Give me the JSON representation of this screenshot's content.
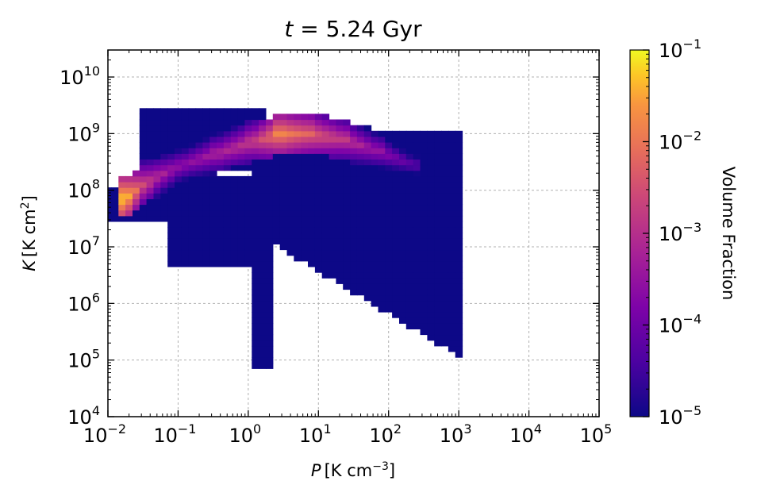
{
  "chart_data": {
    "type": "heatmap",
    "title_var": "t",
    "title_rest": " = 5.24 Gyr",
    "x_axis": {
      "label_var": "P",
      "label_unit": "[K cm",
      "label_sup": "−3",
      "label_close": "]",
      "scale": "log",
      "range": [
        0.01,
        100000
      ],
      "ticks": [
        {
          "base": "10",
          "exp": "−2",
          "value": 0.01
        },
        {
          "base": "10",
          "exp": "−1",
          "value": 0.1
        },
        {
          "base": "10",
          "exp": "0",
          "value": 1
        },
        {
          "base": "10",
          "exp": "1",
          "value": 10
        },
        {
          "base": "10",
          "exp": "2",
          "value": 100
        },
        {
          "base": "10",
          "exp": "3",
          "value": 1000
        },
        {
          "base": "10",
          "exp": "4",
          "value": 10000
        },
        {
          "base": "10",
          "exp": "5",
          "value": 100000
        }
      ]
    },
    "y_axis": {
      "label_var": "K",
      "label_unit": "[K cm",
      "label_sup": "2",
      "label_close": "]",
      "scale": "log",
      "range": [
        10000,
        30000000000
      ],
      "ticks": [
        {
          "base": "10",
          "exp": "4",
          "value": 10000
        },
        {
          "base": "10",
          "exp": "5",
          "value": 100000
        },
        {
          "base": "10",
          "exp": "6",
          "value": 1000000
        },
        {
          "base": "10",
          "exp": "7",
          "value": 10000000
        },
        {
          "base": "10",
          "exp": "8",
          "value": 100000000
        },
        {
          "base": "10",
          "exp": "9",
          "value": 1000000000
        },
        {
          "base": "10",
          "exp": "10",
          "value": 10000000000
        }
      ]
    },
    "grid": true,
    "colorbar": {
      "label": "Volume Fraction",
      "scale": "log",
      "colormap": "plasma",
      "range": [
        1e-05,
        0.1
      ],
      "ticks": [
        {
          "base": "10",
          "exp": "−1",
          "value": 0.1
        },
        {
          "base": "10",
          "exp": "−2",
          "value": 0.01
        },
        {
          "base": "10",
          "exp": "−3",
          "value": 0.001
        },
        {
          "base": "10",
          "exp": "−4",
          "value": 0.0001
        },
        {
          "base": "10",
          "exp": "−5",
          "value": 1e-05
        }
      ]
    },
    "bins": {
      "log_P_step": 0.1,
      "log_K_step": 0.1,
      "occupied_regions": [
        {
          "log_P": [
            -2.2,
            -1.2
          ],
          "log_K": [
            7.4,
            8.0
          ],
          "log_fraction": -3.5
        },
        {
          "log_P": [
            -1.2,
            0.3
          ],
          "log_K": [
            6.6,
            8.2
          ],
          "log_fraction": -5
        },
        {
          "log_P": [
            0.0,
            3.0
          ],
          "log_K": [
            4.8,
            9.0
          ],
          "log_fraction": -5
        },
        {
          "log_P": [
            -1.6,
            0.2
          ],
          "log_K": [
            8.3,
            9.4
          ],
          "log_fraction": -5
        }
      ],
      "peak_ridge": [
        {
          "log_P": -1.8,
          "log_K": 7.8,
          "log_fraction": -1.2
        },
        {
          "log_P": -1.5,
          "log_K": 8.1,
          "log_fraction": -2.8
        },
        {
          "log_P": -1.0,
          "log_K": 8.4,
          "log_fraction": -3.6
        },
        {
          "log_P": -0.5,
          "log_K": 8.6,
          "log_fraction": -3.2
        },
        {
          "log_P": 0.0,
          "log_K": 8.8,
          "log_fraction": -2.8
        },
        {
          "log_P": 0.4,
          "log_K": 8.95,
          "log_fraction": -1.8
        },
        {
          "log_P": 0.8,
          "log_K": 8.95,
          "log_fraction": -2.2
        },
        {
          "log_P": 1.3,
          "log_K": 8.85,
          "log_fraction": -2.8
        },
        {
          "log_P": 1.8,
          "log_K": 8.65,
          "log_fraction": -3.5
        },
        {
          "log_P": 2.3,
          "log_K": 8.4,
          "log_fraction": -4.2
        }
      ]
    }
  }
}
